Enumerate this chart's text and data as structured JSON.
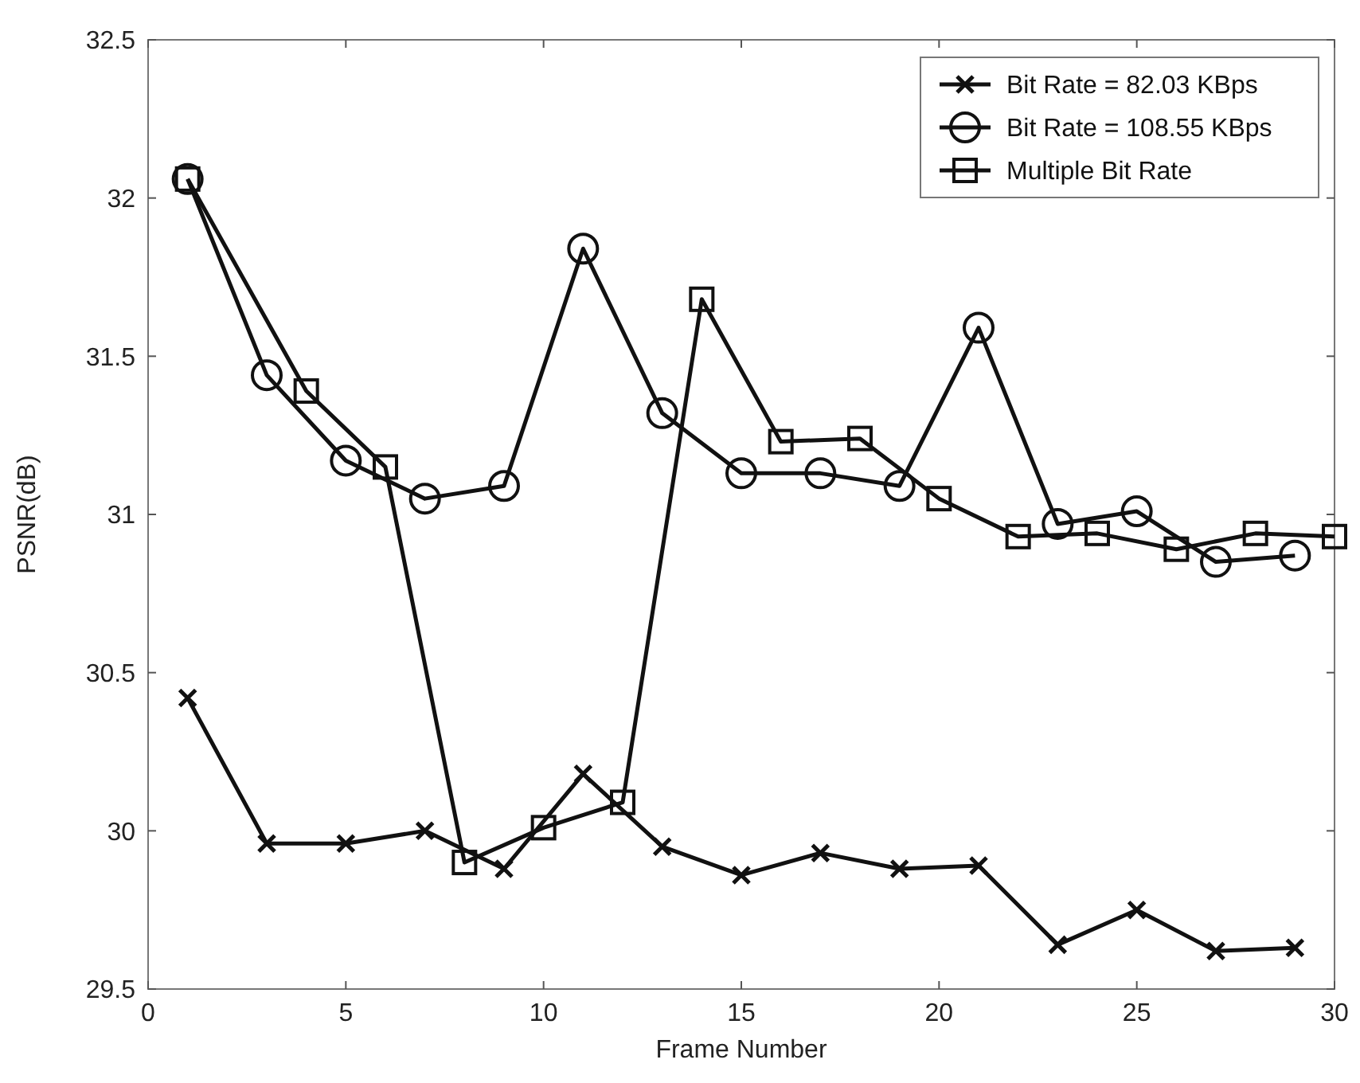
{
  "chart_data": {
    "type": "line",
    "xlabel": "Frame Number",
    "ylabel": "PSNR(dB)",
    "xlim": [
      0,
      30
    ],
    "xticks": [
      0,
      5,
      10,
      15,
      20,
      25,
      30
    ],
    "ylim": [
      29.5,
      32.5
    ],
    "yticks": [
      29.5,
      30,
      30.5,
      31,
      31.5,
      32,
      32.5
    ],
    "legend": "top right",
    "line_style": "solid",
    "series": [
      {
        "name": "Bit Rate = 82.03 KBps",
        "color": "#111111",
        "marker": "cross",
        "x": [
          1,
          3,
          5,
          7,
          9,
          11,
          13,
          15,
          17,
          19,
          21,
          23,
          25,
          27,
          29
        ],
        "values": [
          30.42,
          29.96,
          29.96,
          30.0,
          29.88,
          30.18,
          29.95,
          29.86,
          29.93,
          29.88,
          29.89,
          29.64,
          29.75,
          29.62,
          29.63
        ]
      },
      {
        "name": "Bit Rate = 108.55 KBps",
        "color": "#111111",
        "marker": "circle",
        "x": [
          1,
          3,
          5,
          7,
          9,
          11,
          13,
          15,
          17,
          19,
          21,
          23,
          25,
          27,
          29
        ],
        "values": [
          32.06,
          31.44,
          31.17,
          31.05,
          31.09,
          31.84,
          31.32,
          31.13,
          31.13,
          31.09,
          31.59,
          30.97,
          31.01,
          30.85,
          30.87
        ]
      },
      {
        "name": "Multiple Bit Rate",
        "color": "#111111",
        "marker": "square",
        "x": [
          1,
          4,
          6,
          8,
          10,
          12,
          14,
          16,
          18,
          20,
          22,
          24,
          26,
          28,
          30
        ],
        "values": [
          32.06,
          31.39,
          31.15,
          29.9,
          30.01,
          30.09,
          31.68,
          31.23,
          31.24,
          31.05,
          30.93,
          30.94,
          30.89,
          30.94,
          30.93
        ]
      }
    ]
  }
}
